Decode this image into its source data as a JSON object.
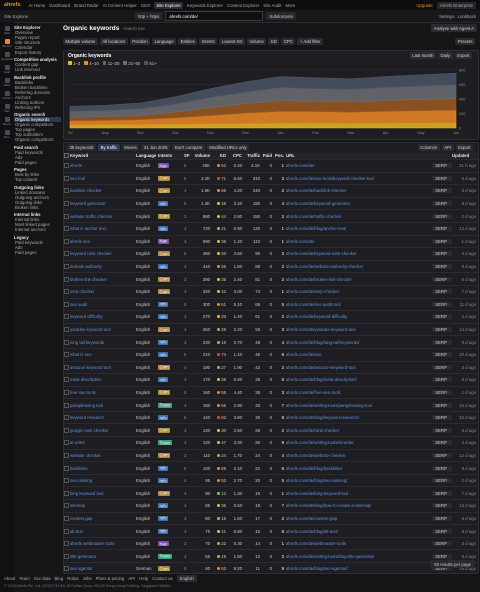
{
  "topbar": {
    "logo": "ahrefs",
    "items": [
      "AI Home",
      "Dashboard",
      "Brand Radar",
      "AI Content Helper",
      "GEO",
      "Site Explorer",
      "Keywords Explorer",
      "Content Explorer",
      "Site Audit",
      "More"
    ],
    "right": [
      "Upgrade",
      "Ahrefs Enterprise"
    ]
  },
  "searchbar": {
    "crumb": "Site Explorer",
    "protocol": "http + https",
    "query": "ahrefs.com/de/",
    "mode": "Subdomains",
    "right": [
      "Settings",
      "Lookback"
    ]
  },
  "icons": [
    "Dash",
    "Site Exp",
    "Keywords",
    "Audit",
    "Rank",
    "Content",
    "Web",
    "Report",
    "More"
  ],
  "sidebar": [
    {
      "title": "Site Explorer",
      "items": [
        "Overview",
        "Pages report",
        "Site structure",
        "Calendar",
        "Export history"
      ]
    },
    {
      "title": "Competitive analysis",
      "items": [
        "Content gap",
        "Link intersect"
      ]
    },
    {
      "title": "Backlink profile",
      "items": [
        "Backlinks",
        "Broken backlinks",
        "Referring domains",
        "Anchors",
        "Linking authors",
        "Referring IPs"
      ]
    },
    {
      "title": "Organic search",
      "items": [
        "Organic keywords",
        "Organic competitors",
        "Top pages",
        "Top subfolders",
        "Organic competitors"
      ]
    },
    {
      "title": "Paid search",
      "items": [
        "Paid keywords",
        "Ads",
        "Paid pages"
      ]
    },
    {
      "title": "Pages",
      "items": [
        "Best by links",
        "Top content"
      ]
    },
    {
      "title": "Outgoing links",
      "items": [
        "Linked domains",
        "Outgoing anchors",
        "Outgoing links",
        "Broken links"
      ]
    },
    {
      "title": "Internal links",
      "items": [
        "Internal links",
        "Most linked pages",
        "Internal anchors"
      ]
    },
    {
      "title": "Legacy",
      "items": [
        "Paid keywords",
        "Ads",
        "Paid pages"
      ]
    }
  ],
  "header": {
    "title": "Organic keywords",
    "help": "How to use",
    "action": "Analyse with Agent A"
  },
  "filters": [
    "Multiple volume",
    "All locations",
    "Position",
    "Language",
    "Entities",
    "Intents",
    "Lowest KD",
    "Volume",
    "KD",
    "CPC",
    "+ Add filter"
  ],
  "presets": "Presets",
  "chart_panel": {
    "controls": [
      "Last month",
      "Daily",
      "Export"
    ]
  },
  "chart_data": {
    "type": "area",
    "title": "Organic keywords",
    "stacked": true,
    "categories": [
      "Jul",
      "Aug",
      "Sep",
      "Oct",
      "Nov",
      "Dec",
      "Jan",
      "Feb",
      "Mar",
      "Apr",
      "May",
      "Jun"
    ],
    "series": [
      {
        "name": "1–3",
        "color": "#e8b923",
        "values": [
          40,
          42,
          45,
          50,
          52,
          55,
          60,
          62,
          58,
          60,
          64,
          66
        ]
      },
      {
        "name": "4–10",
        "color": "#f08a24",
        "values": [
          60,
          62,
          70,
          90,
          120,
          150,
          170,
          165,
          160,
          170,
          175,
          180
        ]
      },
      {
        "name": "11–20",
        "color": "#9c5a20",
        "values": [
          50,
          55,
          60,
          80,
          110,
          130,
          150,
          140,
          145,
          150,
          155,
          160
        ]
      },
      {
        "name": "21–50",
        "color": "#6d6d74",
        "values": [
          80,
          82,
          90,
          110,
          140,
          160,
          180,
          175,
          170,
          180,
          185,
          190
        ]
      },
      {
        "name": "51+",
        "color": "#4b5566",
        "values": [
          70,
          72,
          80,
          100,
          120,
          140,
          150,
          150,
          145,
          150,
          155,
          160
        ]
      }
    ],
    "ylim": [
      0,
      800
    ],
    "yticks": [
      0,
      200,
      400,
      600,
      800
    ],
    "grid": true
  },
  "toolbar": {
    "left": [
      "35 keywords",
      "By traffic",
      "Moves",
      "21 Jun 2025",
      "Don't compare",
      "Modified URLs only"
    ],
    "right": [
      "Columns",
      "API",
      "Export"
    ]
  },
  "table": {
    "columns": [
      "Keyword",
      "Language",
      "Intents",
      "SF",
      "Volume",
      "KD",
      "CPC",
      "Traffic",
      "Paid",
      "Pos.",
      "URL",
      "Updated"
    ],
    "serp_button": "SERP",
    "rows": [
      [
        "ahrefs",
        "English",
        "Nav",
        "5",
        "25K",
        "52",
        "0.40",
        "4.1K",
        "0",
        "1",
        "ahrefs.com/de/",
        "21 h ago"
      ],
      [
        "seo tool",
        "English",
        "Com",
        "6",
        "3.2K",
        "71",
        "6.50",
        "310",
        "0",
        "3",
        "ahrefs.com/de/seo-tools/keyword-checker-tool",
        "5 d ago"
      ],
      [
        "backlink checker",
        "English",
        "Com",
        "4",
        "1.9K",
        "65",
        "4.20",
        "240",
        "0",
        "2",
        "ahrefs.com/de/backlink-checker",
        "3 d ago"
      ],
      [
        "keyword generator",
        "English",
        "Info",
        "5",
        "1.3K",
        "48",
        "3.10",
        "180",
        "0",
        "4",
        "ahrefs.com/de/keyword-generator",
        "9 d ago"
      ],
      [
        "website traffic checker",
        "English",
        "Com",
        "3",
        "880",
        "44",
        "2.80",
        "150",
        "0",
        "2",
        "ahrefs.com/de/traffic-checker",
        "2 d ago"
      ],
      [
        "what is anchor text",
        "English",
        "Info",
        "4",
        "720",
        "21",
        "0.90",
        "120",
        "0",
        "1",
        "ahrefs.com/de/blog/anchor-text/",
        "12 d ago"
      ],
      [
        "ahrefs seo",
        "English",
        "Nav",
        "3",
        "590",
        "38",
        "1.20",
        "110",
        "0",
        "1",
        "ahrefs.com/de/",
        "1 d ago"
      ],
      [
        "keyword rank checker",
        "English",
        "Com",
        "5",
        "480",
        "40",
        "3.60",
        "96",
        "0",
        "3",
        "ahrefs.com/de/keyword-rank-checker",
        "4 d ago"
      ],
      [
        "domain authority",
        "English",
        "Info",
        "4",
        "410",
        "56",
        "1.80",
        "88",
        "0",
        "2",
        "ahrefs.com/de/website-authority-checker",
        "8 d ago"
      ],
      [
        "broken link checker",
        "English",
        "Com",
        "3",
        "390",
        "35",
        "2.40",
        "81",
        "0",
        "2",
        "ahrefs.com/de/broken-link-checker",
        "6 d ago"
      ],
      [
        "serp checker",
        "English",
        "Com",
        "4",
        "320",
        "42",
        "3.00",
        "74",
        "0",
        "1",
        "ahrefs.com/de/serp-checker",
        "7 d ago"
      ],
      [
        "seo audit",
        "English",
        "Info",
        "5",
        "300",
        "61",
        "5.10",
        "68",
        "0",
        "5",
        "ahrefs.com/de/seo-audit-tool",
        "11 d ago"
      ],
      [
        "keyword difficulty",
        "English",
        "Info",
        "3",
        "270",
        "33",
        "1.40",
        "61",
        "0",
        "2",
        "ahrefs.com/de/keyword-difficulty",
        "2 d ago"
      ],
      [
        "youtube keyword tool",
        "English",
        "Com",
        "4",
        "250",
        "29",
        "2.20",
        "55",
        "0",
        "3",
        "ahrefs.com/de/youtube-keyword-tool",
        "14 d ago"
      ],
      [
        "long tail keywords",
        "English",
        "Info",
        "3",
        "230",
        "18",
        "0.70",
        "49",
        "0",
        "4",
        "ahrefs.com/de/blog/long-tail-keywords/",
        "9 d ago"
      ],
      [
        "what is seo",
        "English",
        "Info",
        "6",
        "210",
        "74",
        "1.10",
        "46",
        "0",
        "6",
        "ahrefs.com/de/seo",
        "20 d ago"
      ],
      [
        "amazon keyword tool",
        "English",
        "Com",
        "4",
        "190",
        "27",
        "1.90",
        "42",
        "0",
        "2",
        "ahrefs.com/de/amazon-keyword-tool",
        "3 d ago"
      ],
      [
        "meta description",
        "English",
        "Info",
        "3",
        "170",
        "39",
        "0.60",
        "38",
        "0",
        "5",
        "ahrefs.com/de/blog/meta-description/",
        "5 d ago"
      ],
      [
        "free seo tools",
        "English",
        "Com",
        "5",
        "160",
        "58",
        "4.40",
        "35",
        "0",
        "3",
        "ahrefs.com/de/free-seo-tools",
        "1 d ago"
      ],
      [
        "paraphrasing tool",
        "English",
        "Trans",
        "4",
        "150",
        "66",
        "2.90",
        "33",
        "0",
        "7",
        "ahrefs.com/de/writing-tools/paraphrasing-tool",
        "16 d ago"
      ],
      [
        "keyword research",
        "English",
        "Info",
        "6",
        "140",
        "82",
        "3.80",
        "30",
        "0",
        "8",
        "ahrefs.com/de/blog/keyword-research/",
        "10 d ago"
      ],
      [
        "google rank checker",
        "English",
        "Com",
        "3",
        "130",
        "30",
        "2.50",
        "28",
        "0",
        "2",
        "ahrefs.com/de/rank-checker",
        "6 d ago"
      ],
      [
        "ai writer",
        "English",
        "Trans",
        "4",
        "120",
        "47",
        "3.30",
        "26",
        "0",
        "9",
        "ahrefs.com/de/writing-tools/ai-writer",
        "4 d ago"
      ],
      [
        "website checker",
        "English",
        "Com",
        "3",
        "110",
        "24",
        "1.70",
        "24",
        "0",
        "4",
        "ahrefs.com/de/website-checker",
        "12 d ago"
      ],
      [
        "backlinks",
        "English",
        "Info",
        "5",
        "100",
        "69",
        "2.10",
        "22",
        "0",
        "6",
        "ahrefs.com/de/blog/backlinks/",
        "8 d ago"
      ],
      [
        "seo ranking",
        "English",
        "Info",
        "4",
        "95",
        "53",
        "2.70",
        "20",
        "0",
        "5",
        "ahrefs.com/de/blog/seo-ranking/",
        "2 d ago"
      ],
      [
        "bing keyword tool",
        "English",
        "Com",
        "3",
        "90",
        "12",
        "1.30",
        "19",
        "0",
        "1",
        "ahrefs.com/de/bing-keyword-tool",
        "7 d ago"
      ],
      [
        "sitemap",
        "English",
        "Info",
        "4",
        "85",
        "36",
        "0.50",
        "18",
        "0",
        "7",
        "ahrefs.com/de/blog/how-to-create-a-sitemap/",
        "13 d ago"
      ],
      [
        "content gap",
        "English",
        "Info",
        "3",
        "80",
        "15",
        "1.60",
        "17",
        "0",
        "2",
        "ahrefs.com/de/content-gap",
        "5 d ago"
      ],
      [
        "alt text",
        "English",
        "Info",
        "4",
        "75",
        "41",
        "0.80",
        "15",
        "0",
        "8",
        "ahrefs.com/de/blog/alt-text/",
        "9 d ago"
      ],
      [
        "ahrefs webmaster tools",
        "English",
        "Nav",
        "3",
        "70",
        "22",
        "0.30",
        "14",
        "0",
        "1",
        "ahrefs.com/de/webmaster-tools",
        "3 d ago"
      ],
      [
        "title generator",
        "English",
        "Trans",
        "4",
        "65",
        "19",
        "1.50",
        "13",
        "0",
        "3",
        "ahrefs.com/de/writing-tools/blog-title-generator",
        "6 d ago"
      ],
      [
        "seo agentur",
        "German",
        "Com",
        "5",
        "60",
        "63",
        "9.20",
        "11",
        "0",
        "9",
        "ahrefs.com/de/blog/seo-agentur/",
        "15 d ago"
      ],
      [
        "sprache",
        "German",
        "Info",
        "3",
        "55",
        "9",
        "0.20",
        "10",
        "0",
        "6",
        "ahrefs.com/de/",
        "1 d ago"
      ],
      [
        "local seo",
        "English",
        "Info",
        "4",
        "50",
        "57",
        "3.40",
        "9",
        "0",
        "10",
        "ahrefs.com/de/blog/local-seo/",
        "4 d ago"
      ]
    ]
  },
  "pagination": "50 results per page",
  "footer": {
    "links": [
      "About",
      "Team",
      "Our data",
      "Blog",
      "Robot",
      "Jobs",
      "Plans & pricing",
      "API",
      "Help",
      "Contact us"
    ],
    "language": "English",
    "copyright": "© 2025 Ahrefs Pte. Ltd. (201227417H) 16 Raffles Quay, #33-03 Hong Leong Building, Singapore 048581"
  }
}
